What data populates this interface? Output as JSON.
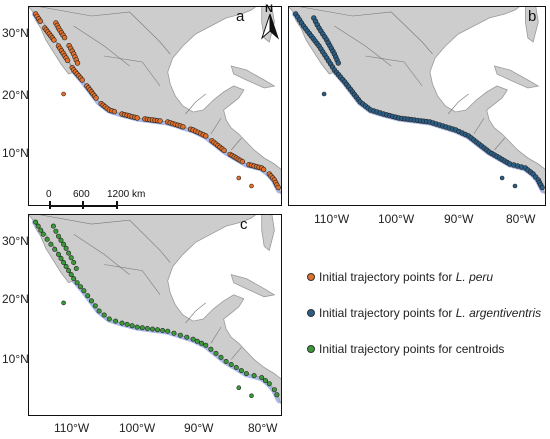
{
  "panels": {
    "a": {
      "label": "a",
      "dot_color": "#e0702b"
    },
    "b": {
      "label": "b",
      "dot_color": "#2a5e86"
    },
    "c": {
      "label": "c",
      "dot_color": "#3a9a38"
    }
  },
  "north_arrow": {
    "label": "N"
  },
  "scale_bar": {
    "labels": [
      "0",
      "600",
      "1200 km"
    ]
  },
  "lat_ticks_top": [
    "30°N",
    "20°N",
    "10°N"
  ],
  "lat_ticks_bottom": [
    "30°N",
    "20°N",
    "10°N"
  ],
  "lon_ticks_right": [
    "110°W",
    "100°W",
    "90°W",
    "80°W"
  ],
  "lon_ticks_bottom": [
    "110°W",
    "100°W",
    "90°W",
    "80°W"
  ],
  "legend": [
    {
      "prefix": "Initial trajectory points for ",
      "species": "L. peru",
      "color": "#e0702b"
    },
    {
      "prefix": "Initial trajectory points for ",
      "species": "L. argentiventris",
      "color": "#2a5e86"
    },
    {
      "prefix": "Initial trajectory points for centroids",
      "species": "",
      "color": "#3a9a38"
    }
  ],
  "colors": {
    "land": "#cdcdcd",
    "sea": "#ffffff",
    "shelf": "#a9b8e6",
    "border": "#7a7a7a"
  }
}
